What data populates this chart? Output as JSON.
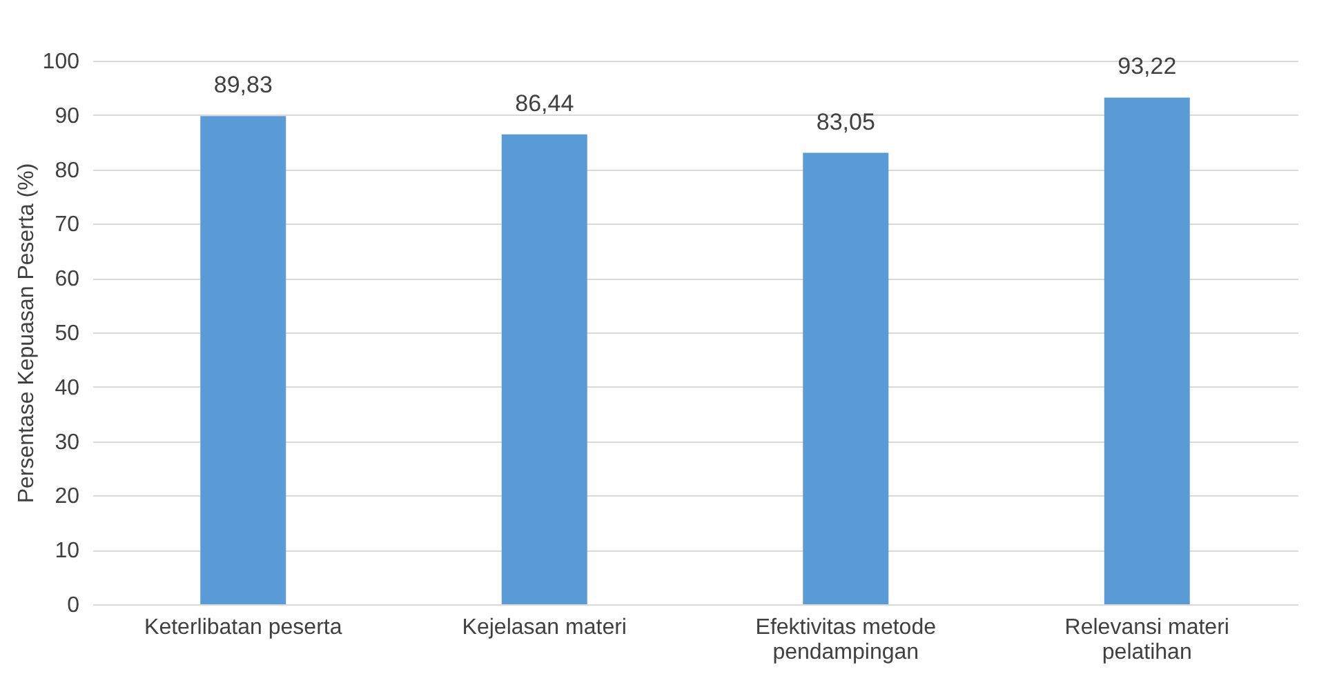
{
  "chart_data": {
    "type": "bar",
    "ylabel": "Persentase Kepuasan Peserta (%)",
    "categories": [
      "Keterlibatan peserta",
      "Kejelasan materi",
      "Efektivitas metode pendampingan",
      "Relevansi materi pelatihan"
    ],
    "values": [
      89.83,
      86.44,
      83.05,
      93.22
    ],
    "value_labels": [
      "89,83",
      "86,44",
      "83,05",
      "93,22"
    ],
    "color": "#5b9bd5",
    "ylim": [
      0,
      100
    ],
    "yticks": [
      0,
      10,
      20,
      30,
      40,
      50,
      60,
      70,
      80,
      90,
      100
    ],
    "grid": "y"
  }
}
